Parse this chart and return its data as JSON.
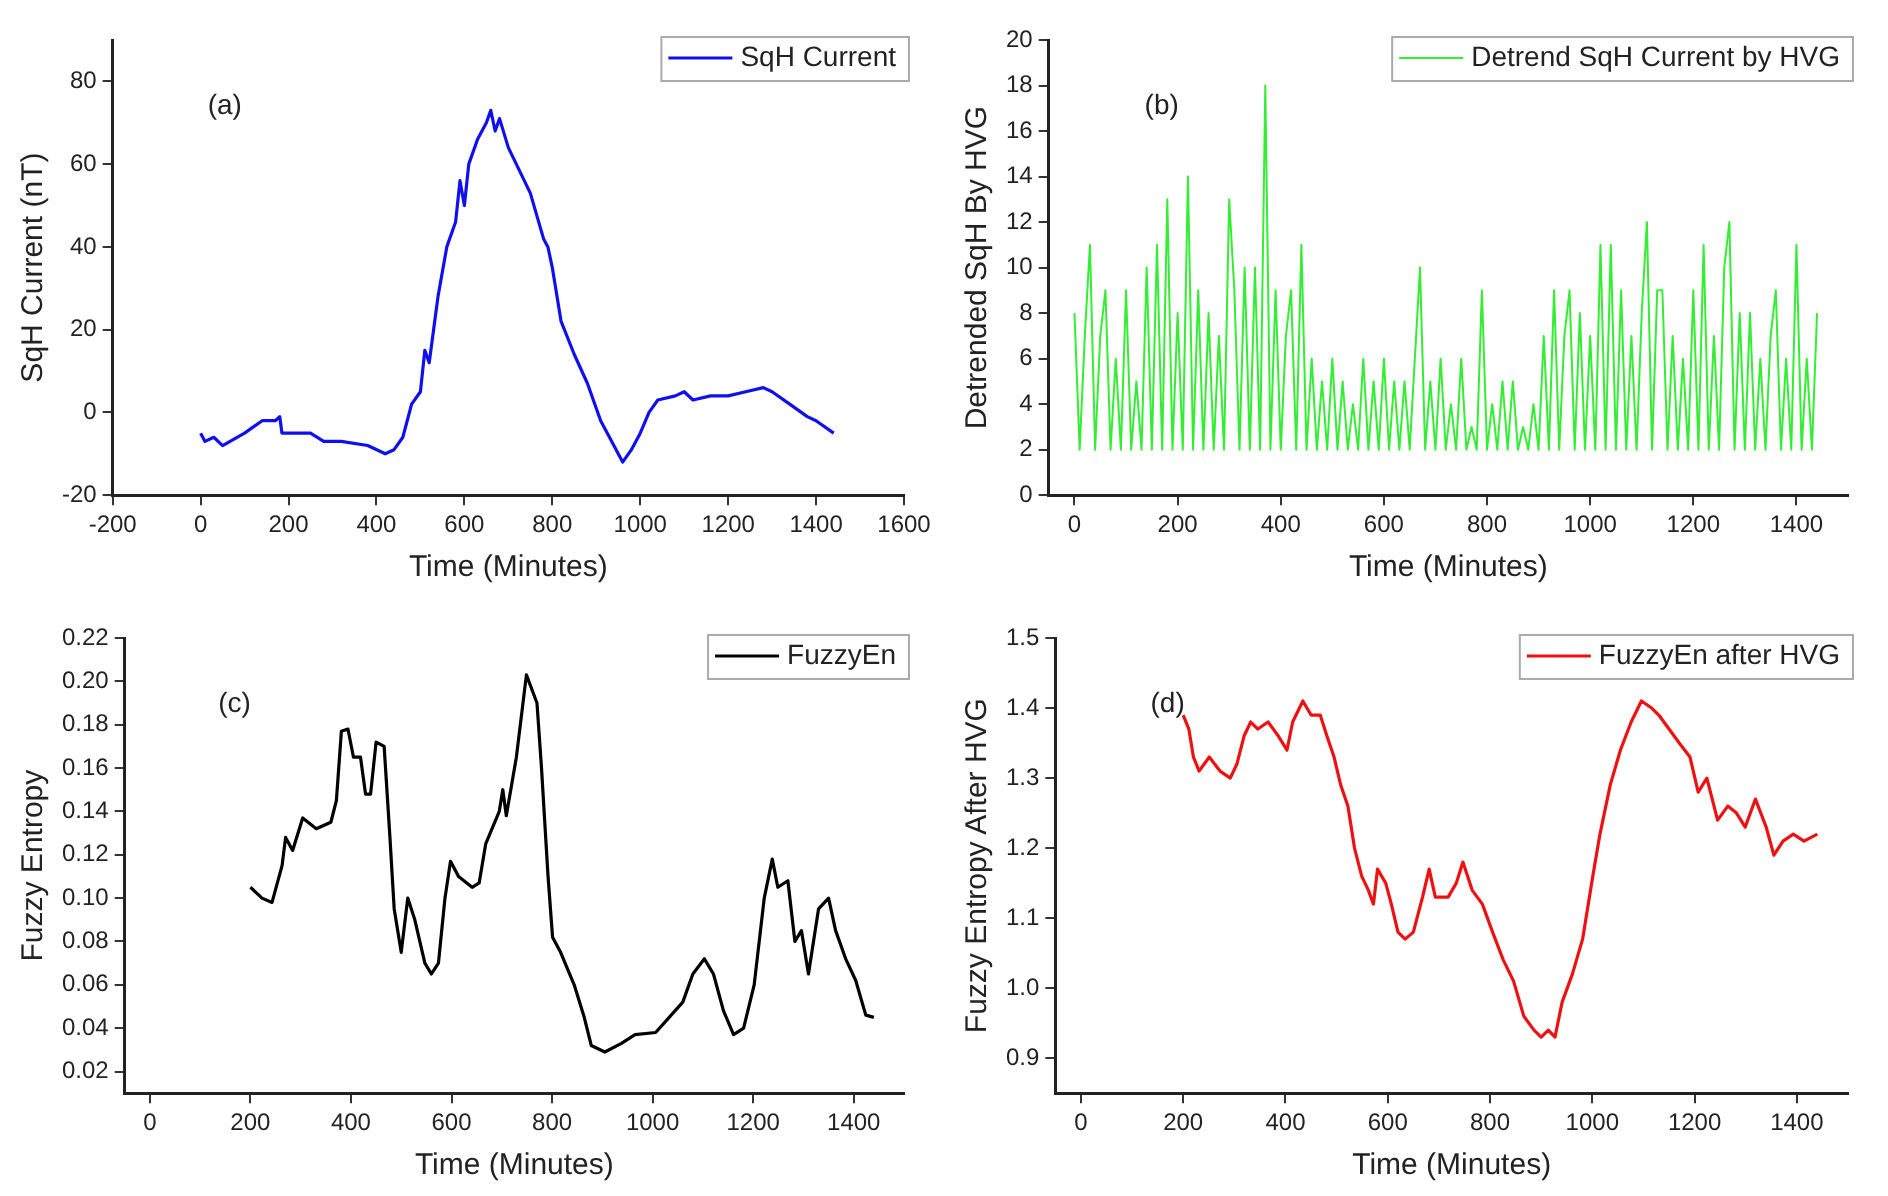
{
  "chart_data": [
    {
      "type": "line",
      "xlabel": "Time (Minutes)",
      "ylabel": "SqH Current (nT)",
      "annotations": [
        "(a)"
      ],
      "legend": "top right",
      "marker": "none",
      "grid": false,
      "x": [
        0,
        10,
        30,
        50,
        100,
        140,
        170,
        180,
        185,
        200,
        250,
        280,
        320,
        380,
        420,
        440,
        460,
        480,
        500,
        510,
        520,
        540,
        560,
        580,
        590,
        600,
        610,
        630,
        650,
        660,
        670,
        680,
        700,
        750,
        780,
        790,
        800,
        820,
        850,
        880,
        910,
        940,
        960,
        980,
        1000,
        1020,
        1040,
        1080,
        1100,
        1120,
        1160,
        1200,
        1240,
        1280,
        1300,
        1340,
        1380,
        1400,
        1440
      ],
      "series": [
        {
          "name": "SqH Current",
          "color": "#1010ee",
          "values": [
            -5,
            -7,
            -6,
            -8,
            -5,
            -2,
            -2,
            -1,
            -5,
            -5,
            -5,
            -7,
            -7,
            -8,
            -10,
            -9,
            -6,
            2,
            5,
            15,
            12,
            28,
            40,
            46,
            56,
            50,
            60,
            66,
            70,
            73,
            68,
            71,
            64,
            53,
            42,
            40,
            35,
            22,
            14,
            7,
            -2,
            -8,
            -12,
            -9,
            -5,
            0,
            3,
            4,
            5,
            3,
            4,
            4,
            5,
            6,
            5,
            2,
            -1,
            -2,
            -5
          ]
        }
      ],
      "xlim": [
        -200,
        1600
      ],
      "xticks": [
        -200,
        0,
        200,
        400,
        600,
        800,
        1000,
        1200,
        1400,
        1600
      ],
      "ylim": [
        -20,
        90
      ],
      "yticks": [
        -20,
        0,
        20,
        40,
        60,
        80
      ]
    },
    {
      "type": "line",
      "xlabel": "Time (Minutes)",
      "ylabel": "Detrended SqH By HVG",
      "annotations": [
        "(b)"
      ],
      "legend": "top right",
      "marker": "none",
      "grid": false,
      "x": [
        0,
        10,
        20,
        30,
        40,
        50,
        60,
        70,
        80,
        90,
        100,
        110,
        120,
        130,
        140,
        150,
        160,
        170,
        180,
        190,
        200,
        210,
        220,
        230,
        240,
        250,
        260,
        270,
        280,
        290,
        300,
        310,
        320,
        330,
        340,
        350,
        360,
        370,
        380,
        390,
        400,
        410,
        420,
        430,
        440,
        450,
        460,
        470,
        480,
        490,
        500,
        510,
        520,
        530,
        540,
        550,
        560,
        570,
        580,
        590,
        600,
        610,
        620,
        630,
        640,
        650,
        660,
        670,
        680,
        690,
        700,
        710,
        720,
        730,
        740,
        750,
        760,
        770,
        780,
        790,
        800,
        810,
        820,
        830,
        840,
        850,
        860,
        870,
        880,
        890,
        900,
        910,
        920,
        930,
        940,
        950,
        960,
        970,
        980,
        990,
        1000,
        1010,
        1020,
        1030,
        1040,
        1050,
        1060,
        1070,
        1080,
        1090,
        1100,
        1110,
        1120,
        1130,
        1140,
        1150,
        1160,
        1170,
        1180,
        1190,
        1200,
        1210,
        1220,
        1230,
        1240,
        1250,
        1260,
        1270,
        1280,
        1290,
        1300,
        1310,
        1320,
        1330,
        1340,
        1350,
        1360,
        1370,
        1380,
        1390,
        1400,
        1410,
        1420,
        1430,
        1440
      ],
      "series": [
        {
          "name": "Detrend SqH Current by HVG",
          "color": "#33ee33",
          "values": [
            8,
            2,
            7,
            11,
            2,
            7,
            9,
            2,
            6,
            2,
            9,
            2,
            5,
            2,
            10,
            2,
            11,
            2,
            13,
            2,
            8,
            2,
            14,
            2,
            9,
            2,
            8,
            2,
            7,
            2,
            13,
            9,
            2,
            10,
            2,
            10,
            2,
            18,
            2,
            9,
            2,
            7,
            9,
            2,
            11,
            2,
            6,
            2,
            5,
            2,
            6,
            2,
            5,
            2,
            4,
            2,
            6,
            2,
            5,
            2,
            6,
            2,
            5,
            2,
            5,
            2,
            6,
            10,
            2,
            5,
            2,
            6,
            2,
            4,
            2,
            6,
            2,
            3,
            2,
            9,
            2,
            4,
            2,
            5,
            2,
            5,
            2,
            3,
            2,
            4,
            2,
            7,
            2,
            9,
            2,
            7,
            9,
            2,
            8,
            2,
            7,
            2,
            11,
            2,
            11,
            2,
            9,
            2,
            7,
            2,
            8,
            12,
            2,
            9,
            9,
            2,
            7,
            2,
            6,
            2,
            9,
            2,
            11,
            2,
            7,
            2,
            10,
            12,
            2,
            8,
            2,
            8,
            2,
            6,
            2,
            7,
            9,
            2,
            6,
            2,
            11,
            2,
            6,
            2,
            8
          ]
        }
      ],
      "xlim": [
        -50,
        1500
      ],
      "xticks": [
        0,
        200,
        400,
        600,
        800,
        1000,
        1200,
        1400
      ],
      "ylim": [
        0,
        20
      ],
      "yticks": [
        0,
        2,
        4,
        6,
        8,
        10,
        12,
        14,
        16,
        18,
        20
      ]
    },
    {
      "type": "line",
      "xlabel": "Time (Minutes)",
      "ylabel": "Fuzzy Entropy",
      "annotations": [
        "(c)"
      ],
      "legend": "top right",
      "marker": "none",
      "grid": false,
      "x": [
        200,
        223,
        243,
        263,
        270,
        284,
        304,
        331,
        360,
        371,
        381,
        394,
        405,
        419,
        429,
        439,
        450,
        466,
        477,
        486,
        500,
        513,
        527,
        547,
        560,
        574,
        587,
        598,
        614,
        641,
        655,
        668,
        695,
        702,
        709,
        729,
        749,
        770,
        779,
        792,
        801,
        817,
        844,
        864,
        878,
        905,
        938,
        965,
        1006,
        1033,
        1060,
        1080,
        1103,
        1121,
        1141,
        1161,
        1181,
        1202,
        1222,
        1238,
        1249,
        1269,
        1283,
        1296,
        1310,
        1330,
        1350,
        1364,
        1384,
        1404,
        1424,
        1440
      ],
      "series": [
        {
          "name": "FuzzyEn",
          "color": "#000000",
          "values": [
            0.105,
            0.1,
            0.098,
            0.115,
            0.128,
            0.122,
            0.137,
            0.132,
            0.135,
            0.145,
            0.177,
            0.178,
            0.165,
            0.165,
            0.148,
            0.148,
            0.172,
            0.17,
            0.13,
            0.095,
            0.075,
            0.1,
            0.09,
            0.07,
            0.065,
            0.07,
            0.1,
            0.117,
            0.11,
            0.105,
            0.107,
            0.125,
            0.14,
            0.15,
            0.138,
            0.165,
            0.203,
            0.19,
            0.16,
            0.11,
            0.082,
            0.075,
            0.06,
            0.045,
            0.032,
            0.029,
            0.033,
            0.037,
            0.038,
            0.045,
            0.052,
            0.065,
            0.072,
            0.065,
            0.048,
            0.037,
            0.04,
            0.06,
            0.1,
            0.118,
            0.105,
            0.108,
            0.08,
            0.085,
            0.065,
            0.095,
            0.1,
            0.085,
            0.072,
            0.062,
            0.046,
            0.045
          ]
        }
      ],
      "xlim": [
        -50,
        1500
      ],
      "xticks": [
        0,
        200,
        400,
        600,
        800,
        1000,
        1200,
        1400
      ],
      "ylim": [
        0.01,
        0.22
      ],
      "yticks": [
        0.02,
        0.04,
        0.06,
        0.08,
        {
          "value": 0.1,
          "label": "0.10"
        },
        0.12,
        0.14,
        0.16,
        0.18,
        {
          "value": 0.2,
          "label": "0.20"
        },
        0.22
      ]
    },
    {
      "type": "line",
      "xlabel": "Time (Minutes)",
      "ylabel": "Fuzzy Entropy After HVG",
      "annotations": [
        "(d)"
      ],
      "legend": "top right",
      "marker": "none",
      "grid": false,
      "x": [
        200,
        211,
        220,
        231,
        251,
        272,
        292,
        305,
        319,
        332,
        346,
        366,
        386,
        403,
        414,
        434,
        450,
        468,
        481,
        495,
        508,
        522,
        535,
        549,
        562,
        572,
        580,
        596,
        607,
        620,
        634,
        650,
        668,
        681,
        693,
        718,
        734,
        747,
        765,
        785,
        805,
        826,
        846,
        866,
        886,
        900,
        914,
        927,
        941,
        961,
        981,
        1001,
        1015,
        1035,
        1055,
        1076,
        1096,
        1116,
        1130,
        1150,
        1170,
        1191,
        1207,
        1224,
        1245,
        1265,
        1282,
        1299,
        1319,
        1340,
        1355,
        1373,
        1393,
        1414,
        1440
      ],
      "series": [
        {
          "name": "FuzzyEn after HVG",
          "color": "#ee1111",
          "values": [
            1.39,
            1.37,
            1.33,
            1.31,
            1.33,
            1.31,
            1.3,
            1.32,
            1.36,
            1.38,
            1.37,
            1.38,
            1.36,
            1.34,
            1.38,
            1.41,
            1.39,
            1.39,
            1.36,
            1.33,
            1.29,
            1.26,
            1.2,
            1.16,
            1.14,
            1.12,
            1.17,
            1.15,
            1.12,
            1.08,
            1.07,
            1.08,
            1.13,
            1.17,
            1.13,
            1.13,
            1.15,
            1.18,
            1.14,
            1.12,
            1.08,
            1.04,
            1.01,
            0.96,
            0.94,
            0.93,
            0.94,
            0.93,
            0.98,
            1.02,
            1.07,
            1.16,
            1.22,
            1.29,
            1.34,
            1.38,
            1.41,
            1.4,
            1.39,
            1.37,
            1.35,
            1.33,
            1.28,
            1.3,
            1.24,
            1.26,
            1.25,
            1.23,
            1.27,
            1.23,
            1.19,
            1.21,
            1.22,
            1.21,
            1.22
          ]
        }
      ],
      "xlim": [
        -50,
        1500
      ],
      "xticks": [
        0,
        200,
        400,
        600,
        800,
        1000,
        1200,
        1400
      ],
      "ylim": [
        0.85,
        1.5
      ],
      "yticks": [
        0.9,
        {
          "value": 1,
          "label": "1.0"
        },
        1.1,
        1.2,
        1.3,
        1.4,
        1.5
      ]
    }
  ]
}
